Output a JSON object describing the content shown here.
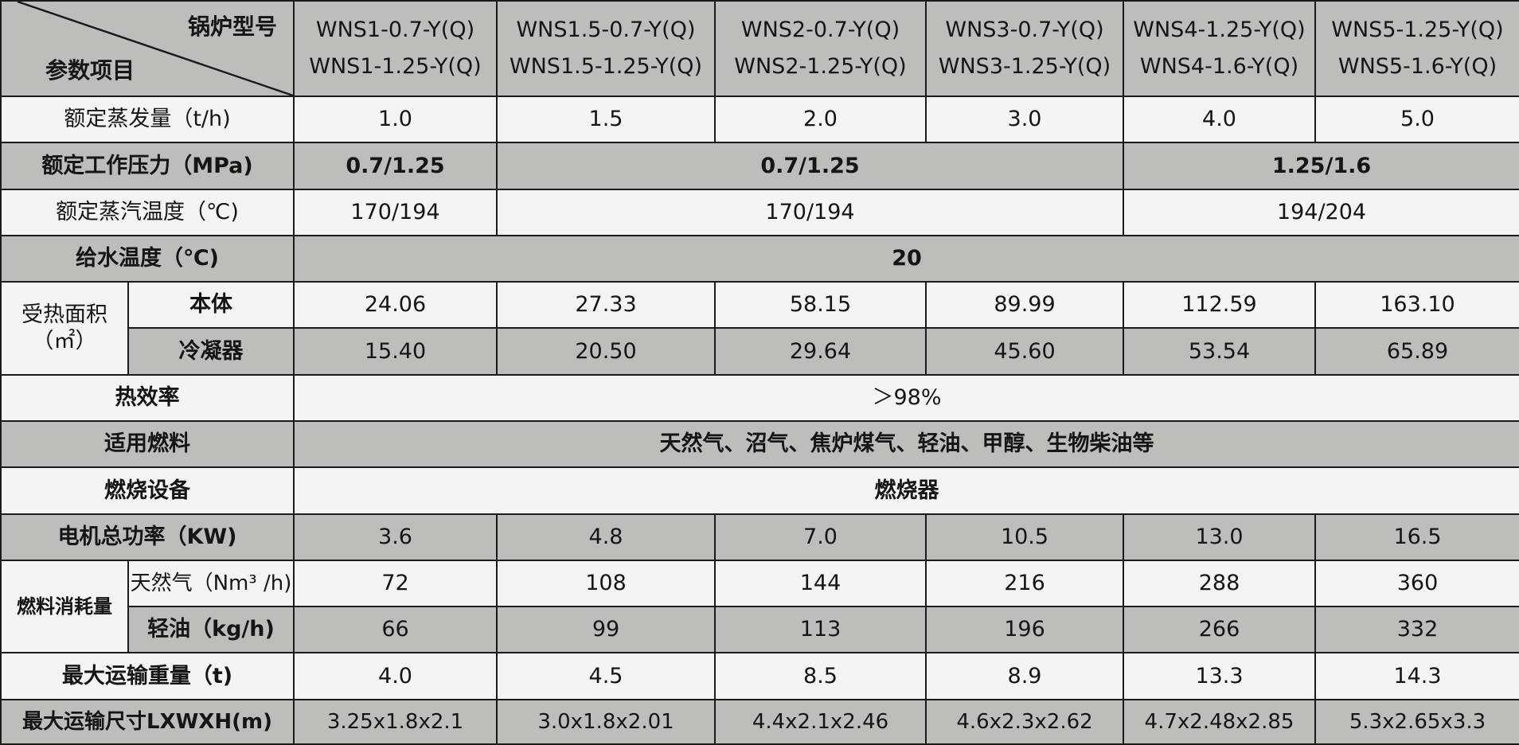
{
  "header": {
    "model_label": "锅炉型号",
    "param_label": "参数项目",
    "models": [
      [
        "WNS1-0.7-Y(Q)",
        "WNS1-1.25-Y(Q)"
      ],
      [
        "WNS1.5-0.7-Y(Q)",
        "WNS1.5-1.25-Y(Q)"
      ],
      [
        "WNS2-0.7-Y(Q)",
        "WNS2-1.25-Y(Q)"
      ],
      [
        "WNS3-0.7-Y(Q)",
        "WNS3-1.25-Y(Q)"
      ],
      [
        "WNS4-1.25-Y(Q)",
        "WNS4-1.6-Y(Q)"
      ],
      [
        "WNS5-1.25-Y(Q)",
        "WNS5-1.6-Y(Q)"
      ]
    ]
  },
  "rows": {
    "steam": {
      "label": "额定蒸发量（t/h)",
      "values": [
        "1.0",
        "1.5",
        "2.0",
        "3.0",
        "4.0",
        "5.0"
      ]
    },
    "pressure": {
      "label": "额定工作压力（MPa)",
      "values": [
        "0.7/1.25",
        "0.7/1.25",
        "1.25/1.6"
      ]
    },
    "temp": {
      "label": "额定蒸汽温度（℃)",
      "values": [
        "170/194",
        "170/194",
        "194/204"
      ]
    },
    "feed": {
      "label": "给水温度（℃)",
      "value": "20"
    },
    "area": {
      "label": "受热面积",
      "unit": "（㎡）",
      "body": {
        "label": "本体",
        "values": [
          "24.06",
          "27.33",
          "58.15",
          "89.99",
          "112.59",
          "163.10"
        ]
      },
      "cond": {
        "label": "冷凝器",
        "values": [
          "15.40",
          "20.50",
          "29.64",
          "45.60",
          "53.54",
          "65.89"
        ]
      }
    },
    "eff": {
      "label": "热效率",
      "value": "＞98%"
    },
    "fuel": {
      "label": "适用燃料",
      "value": "天然气、沼气、焦炉煤气、轻油、甲醇、生物柴油等"
    },
    "burner": {
      "label": "燃烧设备",
      "value": "燃烧器"
    },
    "power": {
      "label": "电机总功率（KW)",
      "values": [
        "3.6",
        "4.8",
        "7.0",
        "10.5",
        "13.0",
        "16.5"
      ]
    },
    "consumption": {
      "label": "燃料消耗量",
      "gas": {
        "label": "天然气（Nm³ /h)",
        "values": [
          "72",
          "108",
          "144",
          "216",
          "288",
          "360"
        ]
      },
      "oil": {
        "label": "轻油（kg/h)",
        "values": [
          "66",
          "99",
          "113",
          "196",
          "266",
          "332"
        ]
      }
    },
    "weight": {
      "label": "最大运输重量（t)",
      "values": [
        "4.0",
        "4.5",
        "8.5",
        "8.9",
        "13.3",
        "14.3"
      ]
    },
    "size": {
      "label": "最大运输尺寸LXWXH(m)",
      "values": [
        "3.25x1.8x2.1",
        "3.0x1.8x2.01",
        "4.4x2.1x2.46",
        "4.6x2.3x2.62",
        "4.7x2.48x2.85",
        "5.3x2.65x3.3"
      ]
    }
  }
}
